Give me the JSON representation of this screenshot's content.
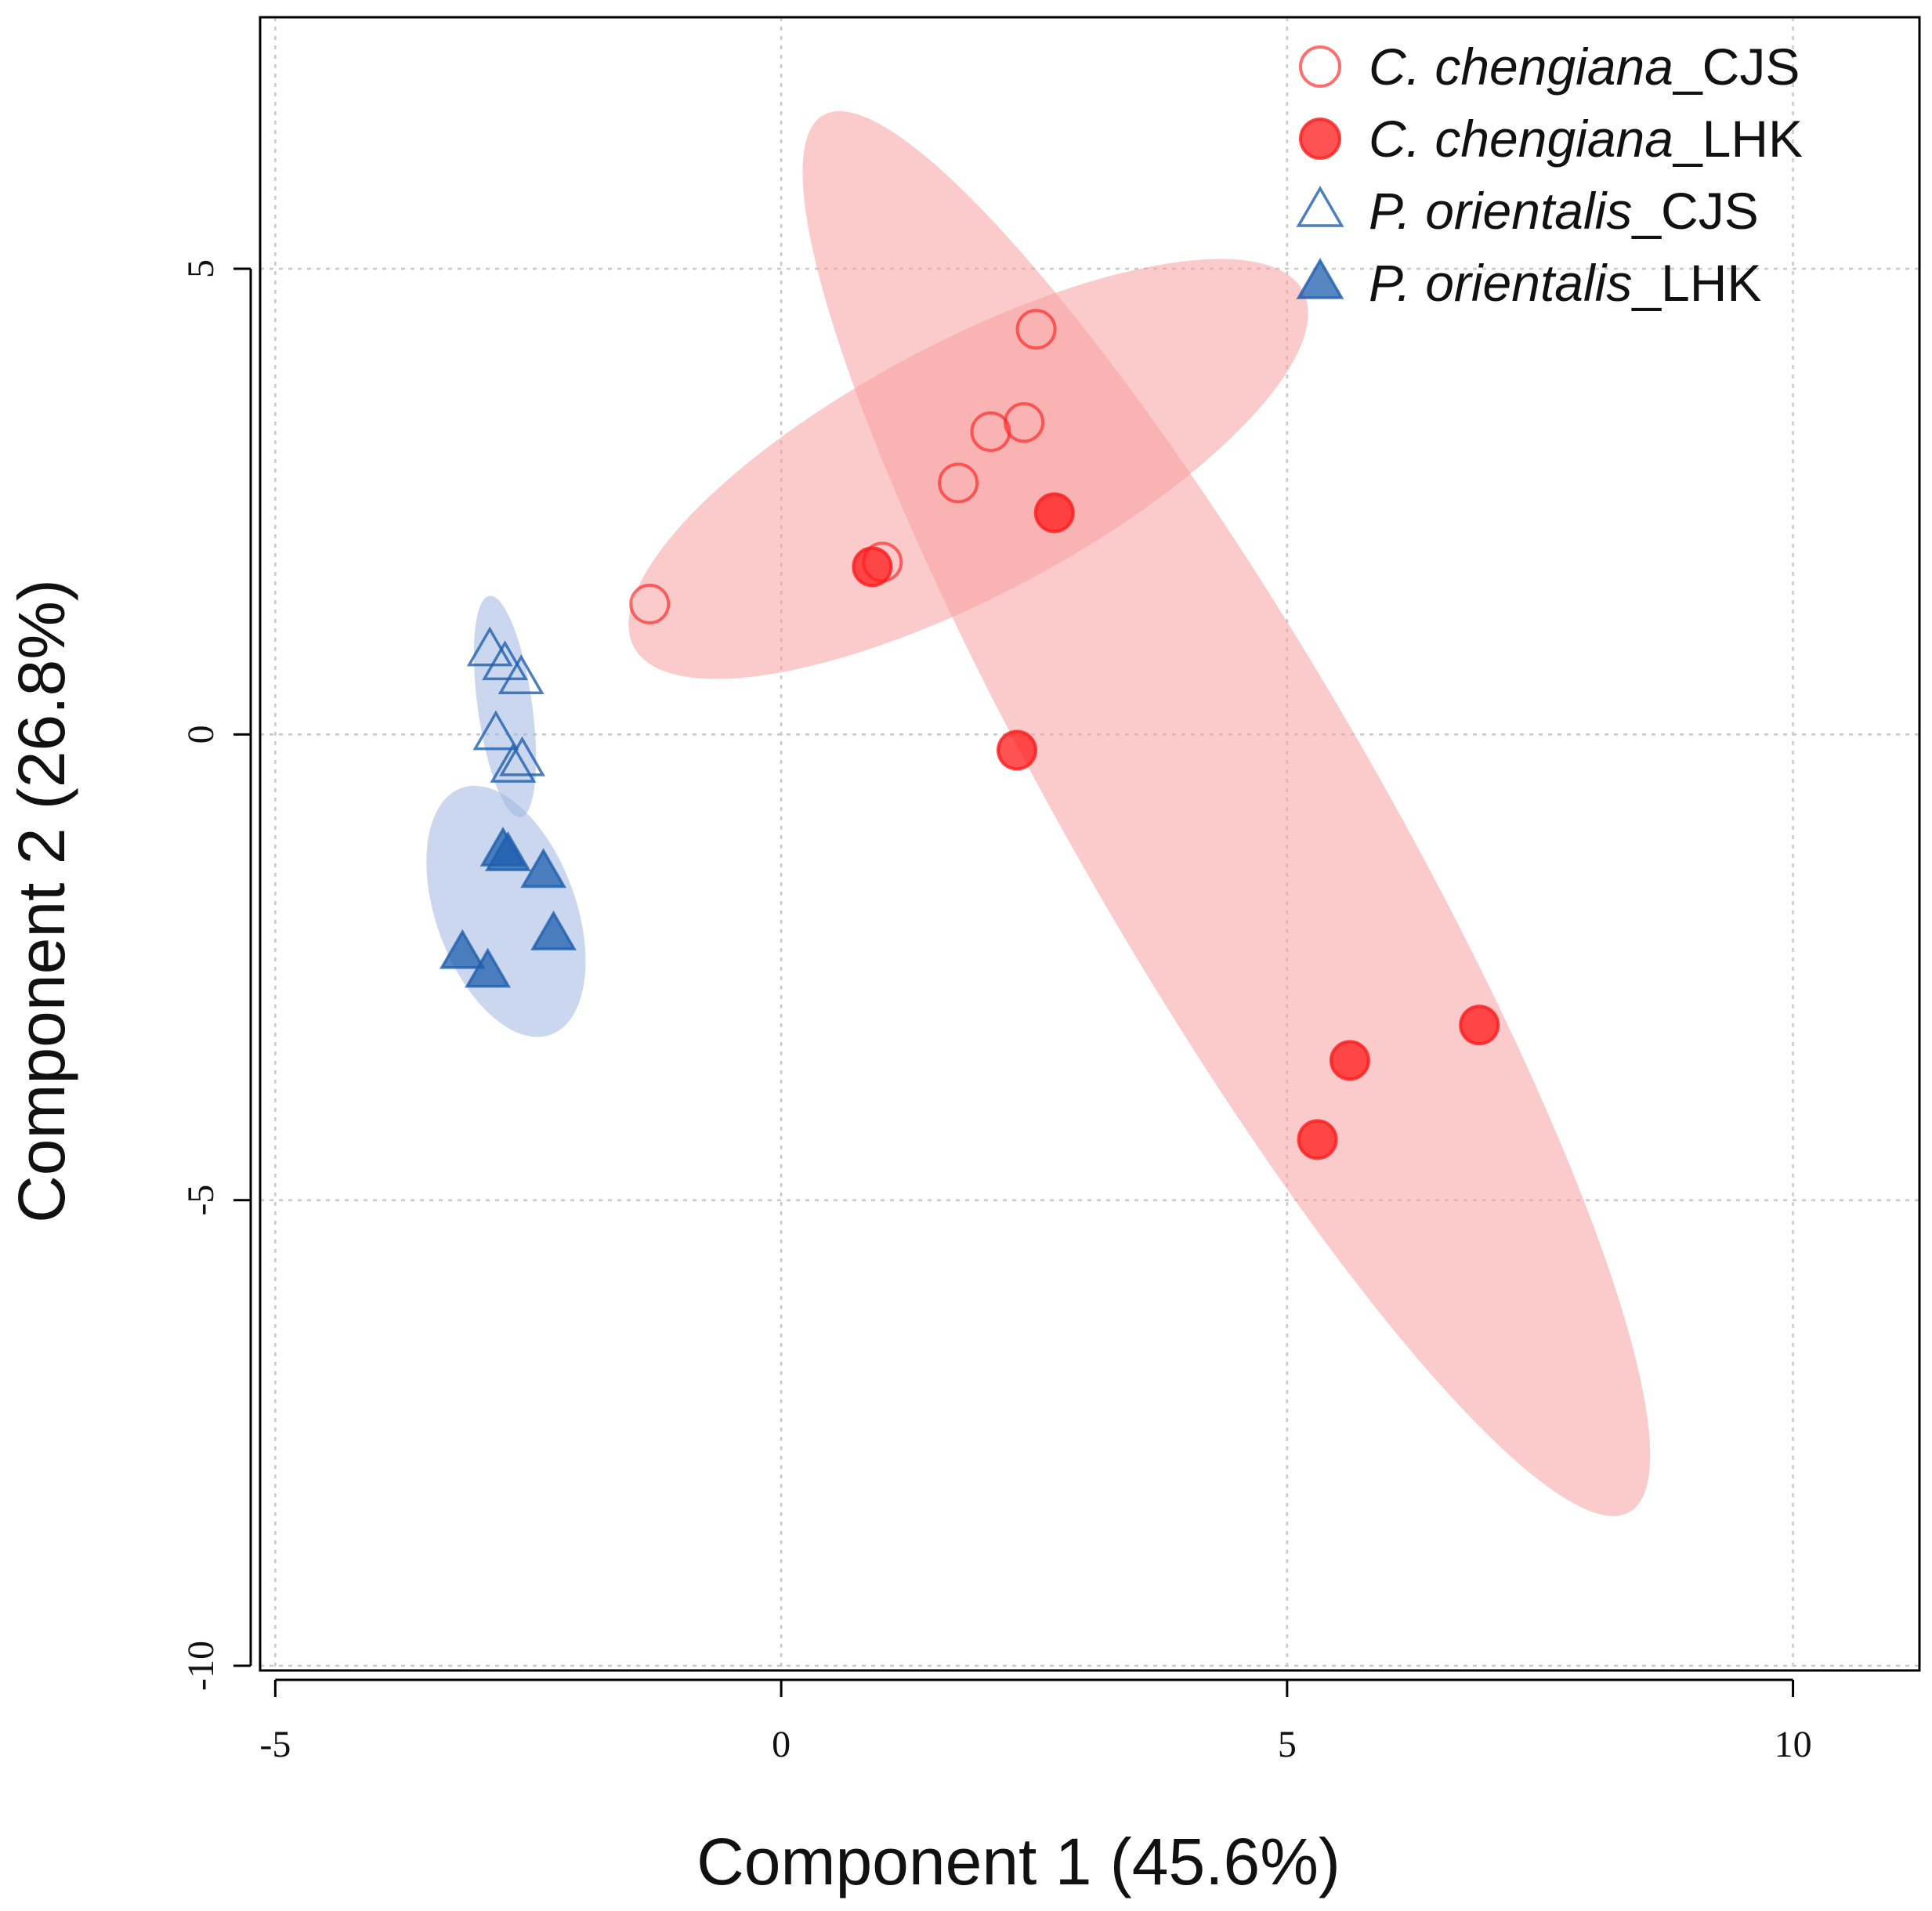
{
  "chart_data": {
    "type": "scatter",
    "title": "",
    "xlabel": "Component 1 (45.6%)",
    "ylabel": "Component 2 (26.8%)",
    "xlim": [
      -5.15,
      11.25
    ],
    "ylim": [
      -10.05,
      7.7
    ],
    "xticks": [
      "-5",
      "0",
      "5",
      "10"
    ],
    "yticks": [
      "-10",
      "-5",
      "0",
      "5"
    ],
    "grid": true,
    "grid_style": "dotted",
    "legend_position": "top-right",
    "colors": {
      "red": "#ff1a1a",
      "blue": "#1f5fae",
      "red_fill": "#f7a0a0",
      "blue_fill": "#9fb6e0"
    },
    "series": [
      {
        "name_italic": "C. chengiana",
        "name_suffix": "_CJS",
        "marker": "open-circle",
        "color": "#ff2020",
        "x": [
          -1.3,
          1.0,
          1.75,
          2.07,
          2.4,
          2.52
        ],
        "y": [
          1.4,
          1.85,
          2.7,
          3.25,
          3.35,
          4.35
        ]
      },
      {
        "name_italic": "C. chengiana",
        "name_suffix": "_LHK",
        "marker": "filled-circle",
        "color": "#ff1a1a",
        "x": [
          0.9,
          2.7,
          2.33,
          5.62,
          6.9,
          5.3
        ],
        "y": [
          1.8,
          2.38,
          -0.17,
          -3.5,
          -3.12,
          -4.35
        ]
      },
      {
        "name_italic": "P. orientalis",
        "name_suffix": "_CJS",
        "marker": "open-triangle",
        "color": "#1f5fae",
        "x": [
          -2.88,
          -2.73,
          -2.57,
          -2.82,
          -2.65,
          -2.56
        ],
        "y": [
          0.9,
          0.75,
          0.6,
          0.0,
          -0.35,
          -0.28
        ]
      },
      {
        "name_italic": "P. orientalis",
        "name_suffix": "_LHK",
        "marker": "filled-triangle",
        "color": "#1f5fae",
        "x": [
          -2.75,
          -2.7,
          -2.35,
          -3.15,
          -2.9,
          -2.25
        ],
        "y": [
          -1.25,
          -1.3,
          -1.48,
          -2.35,
          -2.55,
          -2.15
        ]
      }
    ],
    "ellipses": [
      {
        "group": "C. chengiana_CJS",
        "color": "#f7a0a0",
        "center": [
          1.85,
          2.85
        ],
        "rx": 3.9,
        "ry": 1.3,
        "angle_deg": -28
      },
      {
        "group": "C. chengiana_LHK",
        "color": "#f7a0a0",
        "center": [
          4.4,
          -0.85
        ],
        "rx": 8.3,
        "ry": 1.55,
        "angle_deg": 60
      },
      {
        "group": "P. orientalis_CJS",
        "color": "#9fb6e0",
        "center": [
          -2.73,
          0.3
        ],
        "rx": 1.15,
        "ry": 0.28,
        "angle_deg": 82
      },
      {
        "group": "P. orientalis_LHK",
        "color": "#9fb6e0",
        "center": [
          -2.72,
          -1.9
        ],
        "rx": 1.35,
        "ry": 0.72,
        "angle_deg": 70
      }
    ]
  }
}
